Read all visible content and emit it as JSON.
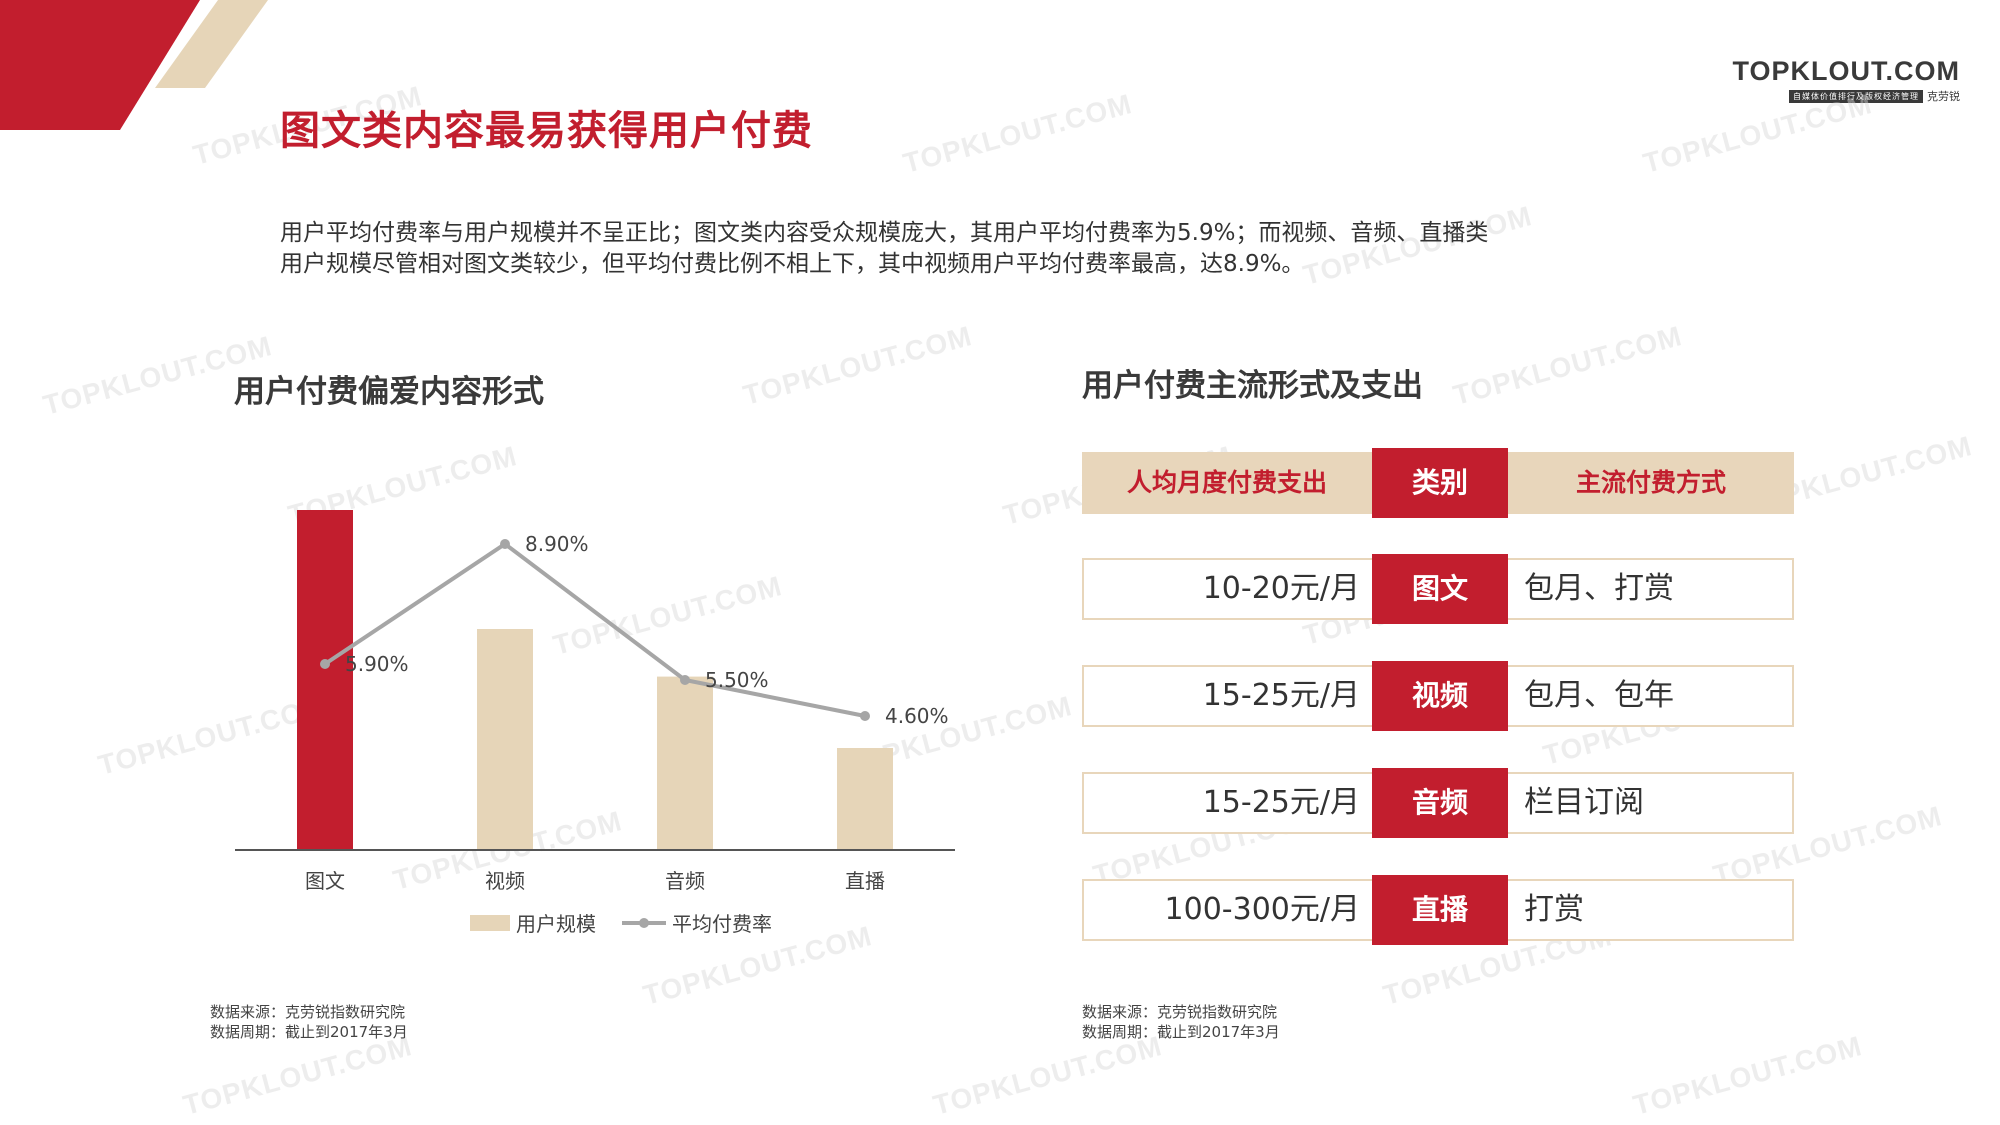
{
  "brand": {
    "name": "TOPKLOUT.COM",
    "slogan": "自媒体价值排行及版权经济管理",
    "cn": "克劳锐"
  },
  "title": "图文类内容最易获得用户付费",
  "summary": {
    "line1": "用户平均付费率与用户规模并不呈正比；图文类内容受众规模庞大，其用户平均付费率为5.9%；而视频、音频、直播类",
    "line2": "用户规模尽管相对图文类较少，但平均付费比例不相上下，其中视频用户平均付费率最高，达8.9%。"
  },
  "left_section": {
    "title": "用户付费偏爱内容形式"
  },
  "right_section": {
    "title": "用户付费主流形式及支出"
  },
  "chart_data": {
    "type": "bar",
    "categories": [
      "图文",
      "视频",
      "音频",
      "直播"
    ],
    "series": [
      {
        "name": "用户规模",
        "type": "bar",
        "values": [
          100,
          65,
          51,
          30
        ]
      },
      {
        "name": "平均付费率",
        "type": "line",
        "values": [
          5.9,
          8.9,
          5.5,
          4.6
        ],
        "labels": [
          "5.90%",
          "8.90%",
          "5.50%",
          "4.60%"
        ]
      }
    ],
    "bar_ylim": [
      0,
      100
    ],
    "line_ylim": [
      0,
      10
    ],
    "grid": false,
    "legend": "bottom",
    "colors": {
      "highlight_bar": "#c21e2e",
      "bar": "#e6d5b8",
      "line": "#a6a6a6",
      "axis": "#555555",
      "text": "#444444"
    }
  },
  "table": {
    "headers": [
      "人均月度付费支出",
      "类别",
      "主流付费方式"
    ],
    "rows": [
      {
        "amount": "10-20元/月",
        "category": "图文",
        "method": "包月、打赏"
      },
      {
        "amount": "15-25元/月",
        "category": "视频",
        "method": "包月、包年"
      },
      {
        "amount": "15-25元/月",
        "category": "音频",
        "method": "栏目订阅"
      },
      {
        "amount": "100-300元/月",
        "category": "直播",
        "method": "打赏"
      }
    ]
  },
  "sources": {
    "left": {
      "line1": "数据来源：克劳锐指数研究院",
      "line2": "数据周期：截止到2017年3月"
    },
    "right": {
      "line1": "数据来源：克劳锐指数研究院",
      "line2": "数据周期：截止到2017年3月"
    }
  },
  "watermark": "TOPKLOUT.COM",
  "colors": {
    "accent": "#c21e2e",
    "beige": "#e8d6bb"
  }
}
